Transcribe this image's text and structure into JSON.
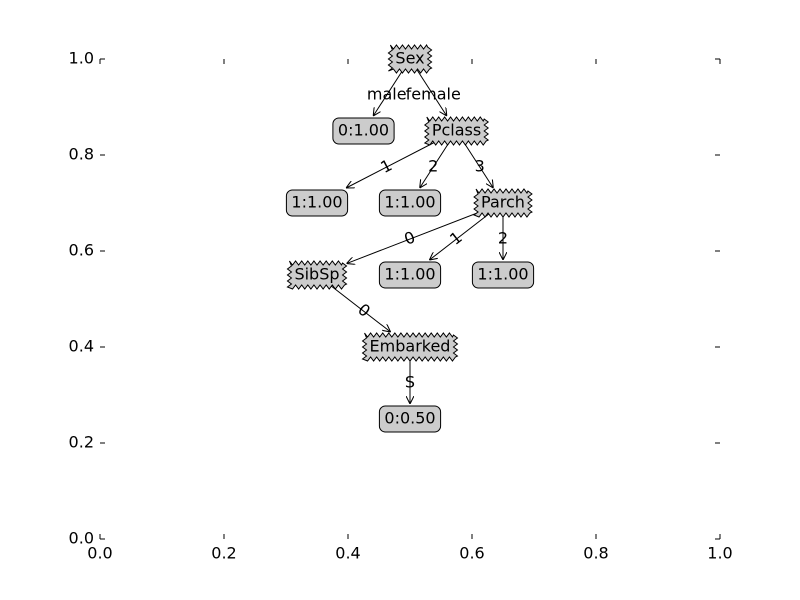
{
  "chart_data": {
    "type": "tree",
    "xlim": [
      0,
      1
    ],
    "ylim": [
      0,
      1
    ],
    "xticks": [
      {
        "value": 0,
        "label": "0.0"
      },
      0.2,
      0.4,
      0.6,
      0.8,
      {
        "value": 1,
        "label": "1.0"
      }
    ],
    "yticks": [
      {
        "value": 0,
        "label": "0.0"
      },
      0.2,
      0.4,
      0.6,
      0.8,
      {
        "value": 1,
        "label": "1.0"
      }
    ],
    "box_color": "#cccccc",
    "nodes": [
      {
        "label": "Sex",
        "kind": "decision",
        "x": 0.5,
        "y": 1.0
      },
      {
        "label": "0:1.00",
        "kind": "leaf",
        "x": 0.425,
        "y": 0.85
      },
      {
        "label": "Pclass",
        "kind": "decision",
        "x": 0.575,
        "y": 0.85
      },
      {
        "label": "1:1.00",
        "kind": "leaf",
        "x": 0.35,
        "y": 0.7
      },
      {
        "label": "1:1.00",
        "kind": "leaf",
        "x": 0.5,
        "y": 0.7
      },
      {
        "label": "Parch",
        "kind": "decision",
        "x": 0.65,
        "y": 0.7
      },
      {
        "label": "SibSp",
        "kind": "decision",
        "x": 0.35,
        "y": 0.55
      },
      {
        "label": "1:1.00",
        "kind": "leaf",
        "x": 0.5,
        "y": 0.55
      },
      {
        "label": "1:1.00",
        "kind": "leaf",
        "x": 0.65,
        "y": 0.55
      },
      {
        "label": "Embarked",
        "kind": "decision",
        "x": 0.5,
        "y": 0.4
      },
      {
        "label": "0:0.50",
        "kind": "leaf",
        "x": 0.5,
        "y": 0.25
      }
    ],
    "edges": [
      {
        "from": 0,
        "to": 1,
        "label": "male"
      },
      {
        "from": 0,
        "to": 2,
        "label": "female"
      },
      {
        "from": 2,
        "to": 3,
        "label": "1"
      },
      {
        "from": 2,
        "to": 4,
        "label": "2"
      },
      {
        "from": 2,
        "to": 5,
        "label": "3"
      },
      {
        "from": 5,
        "to": 6,
        "label": "0"
      },
      {
        "from": 5,
        "to": 7,
        "label": "1"
      },
      {
        "from": 5,
        "to": 8,
        "label": "2"
      },
      {
        "from": 6,
        "to": 9,
        "label": "0"
      },
      {
        "from": 9,
        "to": 10,
        "label": "S"
      }
    ]
  }
}
